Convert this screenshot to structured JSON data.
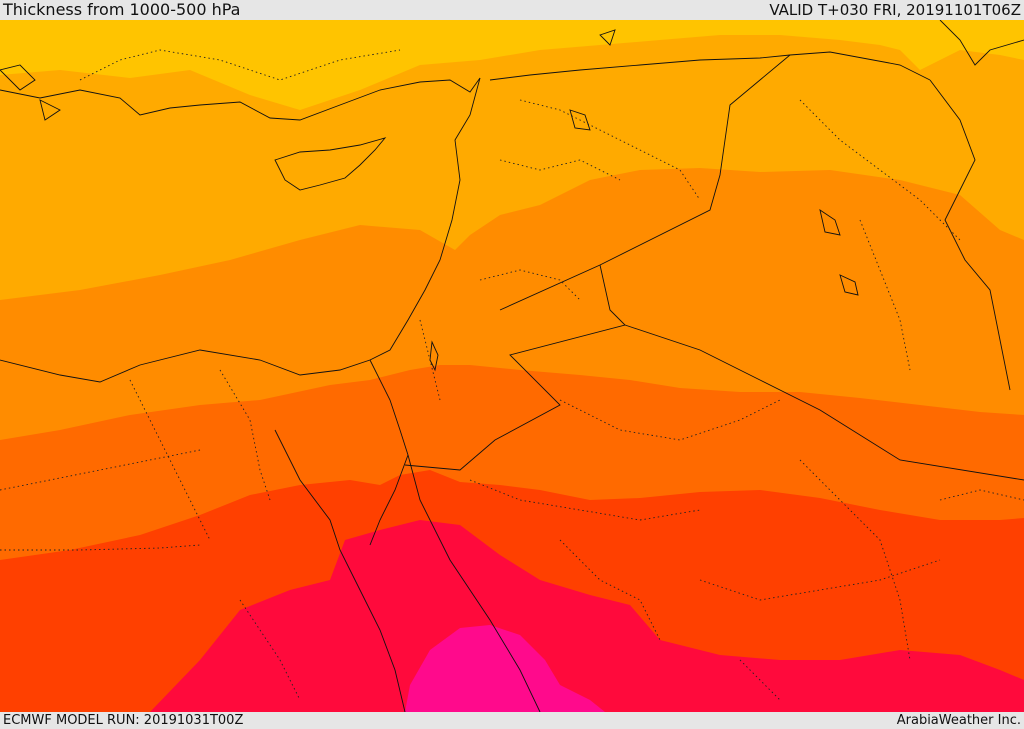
{
  "header": {
    "title": "Thickness from 1000-500 hPa",
    "valid": "VALID T+030 FRI, 20191101T06Z"
  },
  "footer": {
    "model_run": "ECMWF MODEL RUN: 20191031T00Z",
    "credit": "ArabiaWeather Inc."
  },
  "map": {
    "colors": {
      "band_yellow": "#ffc400",
      "band_light_orange": "#ffaa00",
      "band_orange": "#ff8c00",
      "band_dark_orange": "#ff6a00",
      "band_red_orange": "#ff4000",
      "band_red": "#ff0a3c",
      "band_magenta": "#ff0a8c"
    }
  }
}
